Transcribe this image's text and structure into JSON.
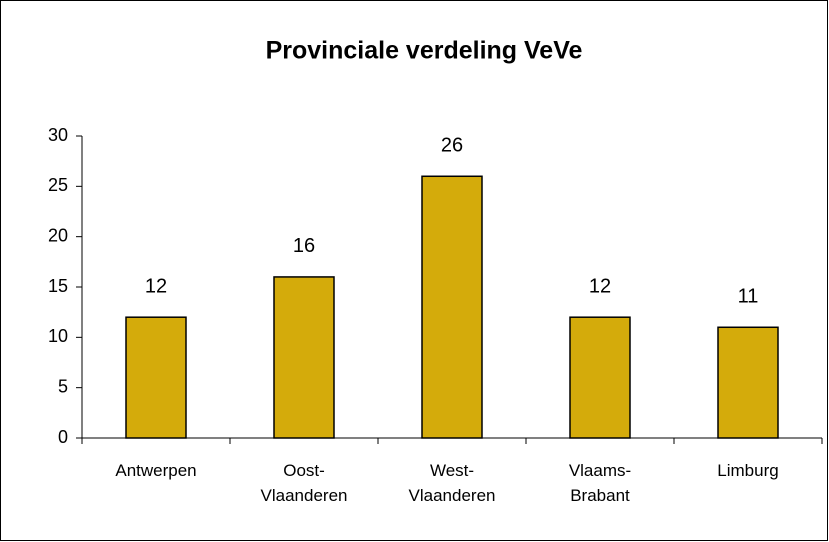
{
  "chart_data": {
    "type": "bar",
    "title": "Provinciale verdeling VeVe",
    "categories": [
      "Antwerpen",
      "Oost-Vlaanderen",
      "West-Vlaanderen",
      "Vlaams-Brabant",
      "Limburg"
    ],
    "values": [
      12,
      16,
      26,
      12,
      11
    ],
    "color": "#d4ab0b",
    "ylim": [
      0,
      30
    ],
    "yticks": [
      0,
      5,
      10,
      15,
      20,
      25,
      30
    ],
    "grid": false
  }
}
